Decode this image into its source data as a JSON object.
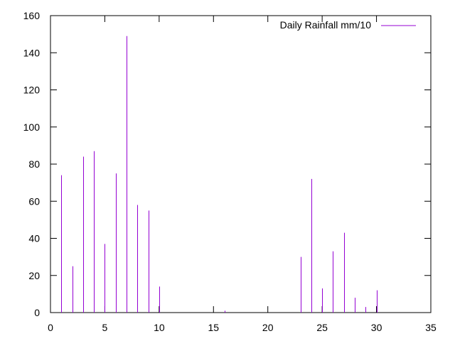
{
  "chart_data": {
    "type": "bar",
    "style": "impulses",
    "series": [
      {
        "name": "Daily Rainfall mm/10",
        "color": "#9400d3",
        "x": [
          1,
          2,
          3,
          4,
          5,
          6,
          7,
          8,
          9,
          10,
          16,
          23,
          24,
          25,
          26,
          27,
          28,
          29,
          30
        ],
        "values": [
          74,
          25,
          84,
          87,
          37,
          75,
          149,
          58,
          55,
          14,
          1,
          30,
          72,
          13,
          33,
          43,
          8,
          3,
          12
        ]
      }
    ],
    "xlim": [
      0,
      35
    ],
    "ylim": [
      0,
      160
    ],
    "xticks": [
      0,
      5,
      10,
      15,
      20,
      25,
      30,
      35
    ],
    "yticks": [
      0,
      20,
      40,
      60,
      80,
      100,
      120,
      140,
      160
    ],
    "grid": false,
    "legend_position": "top-right"
  }
}
